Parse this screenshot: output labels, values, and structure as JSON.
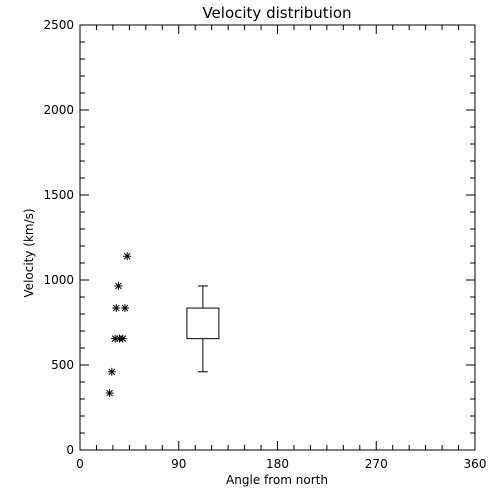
{
  "chart_data": {
    "type": "scatter",
    "title": "Velocity distribution",
    "xlabel": "Angle from north",
    "ylabel": "Velocity (km/s)",
    "xlim": [
      0,
      360
    ],
    "ylim": [
      0,
      2500
    ],
    "x_ticks": [
      0,
      90,
      180,
      270,
      360
    ],
    "y_ticks": [
      0,
      500,
      1000,
      1500,
      2000,
      2500
    ],
    "grid": false,
    "legend": "none",
    "colors": {
      "foreground": "#000000",
      "background": "#ffffff"
    },
    "series": [
      {
        "kind": "scatter",
        "marker": "asterisk",
        "points": [
          {
            "x": 27,
            "y": 335
          },
          {
            "x": 29,
            "y": 460
          },
          {
            "x": 32,
            "y": 655
          },
          {
            "x": 36,
            "y": 655
          },
          {
            "x": 39,
            "y": 655
          },
          {
            "x": 33,
            "y": 835
          },
          {
            "x": 41,
            "y": 835
          },
          {
            "x": 35,
            "y": 965
          },
          {
            "x": 43,
            "y": 1140
          }
        ]
      },
      {
        "kind": "box",
        "x": 112,
        "whisker_low": 460,
        "q1": 655,
        "q3": 835,
        "whisker_high": 965
      }
    ]
  }
}
